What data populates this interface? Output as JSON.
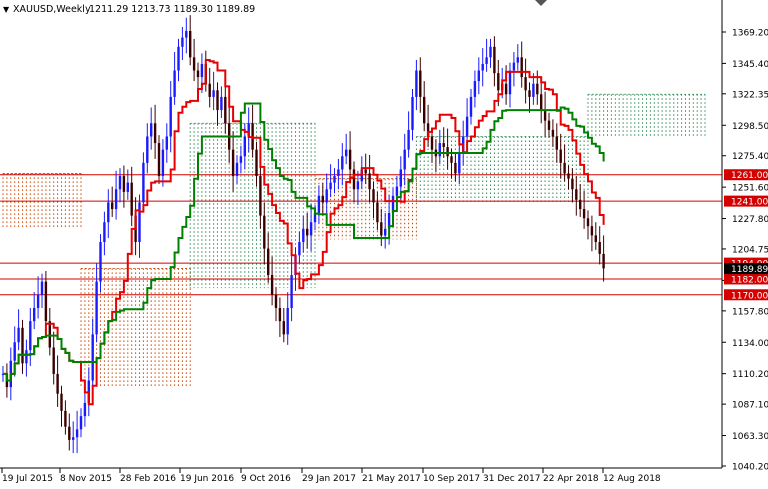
{
  "header": {
    "menu_glyph": "▼",
    "symbol": "XAUUSD,Weekly",
    "ohlc": "1211.29 1213.73 1189.30 1189.89"
  },
  "colors": {
    "bull_candle": "#1a1aff",
    "bear_candle": "#3a0000",
    "tenkan": "#e60000",
    "kijun": "#008000",
    "cloud_up": "#2e8b57",
    "cloud_down": "#cc4400",
    "hline": "#d40000",
    "label_bg": "#d40000",
    "current_bg": "#000000"
  },
  "chart_data": {
    "type": "candlestick",
    "y_ticks": [
      "1369.20",
      "1345.40",
      "1322.35",
      "1298.50",
      "1275.40",
      "1251.60",
      "1227.80",
      "1204.75",
      "1180.90",
      "1157.80",
      "1134.00",
      "1110.20",
      "1087.10",
      "1063.30",
      "1040.20"
    ],
    "x_ticks": [
      "19 Jul 2015",
      "8 Nov 2015",
      "28 Feb 2016",
      "19 Jun 2016",
      "9 Oct 2016",
      "29 Jan 2017",
      "21 May 2017",
      "10 Sep 2017",
      "31 Dec 2017",
      "22 Apr 2018",
      "12 Aug 2018"
    ],
    "horizontal_levels": [
      {
        "price": 1261.0,
        "label": "1261.00"
      },
      {
        "price": 1241.0,
        "label": "1241.00"
      },
      {
        "price": 1194.0,
        "label": "1194.00"
      },
      {
        "price": 1182.0,
        "label": "1182.00"
      },
      {
        "price": 1170.0,
        "label": "1170.00"
      }
    ],
    "current_price": {
      "price": 1189.89,
      "label": "1189.89"
    },
    "y_range": [
      1040.2,
      1380
    ],
    "start_week": "2015-07-05",
    "candles_close": [
      1110,
      1100,
      1120,
      1134,
      1145,
      1118,
      1128,
      1150,
      1160,
      1170,
      1180,
      1150,
      1130,
      1110,
      1095,
      1082,
      1070,
      1060,
      1062,
      1068,
      1078,
      1088,
      1105,
      1140,
      1180,
      1210,
      1225,
      1240,
      1235,
      1250,
      1260,
      1248,
      1255,
      1230,
      1210,
      1240,
      1270,
      1290,
      1300,
      1285,
      1260,
      1280,
      1290,
      1320,
      1340,
      1358,
      1365,
      1370,
      1350,
      1340,
      1335,
      1345,
      1330,
      1320,
      1325,
      1310,
      1320,
      1300,
      1280,
      1260,
      1270,
      1275,
      1290,
      1300,
      1280,
      1260,
      1230,
      1205,
      1185,
      1170,
      1160,
      1150,
      1140,
      1160,
      1185,
      1200,
      1210,
      1220,
      1215,
      1225,
      1232,
      1245,
      1240,
      1250,
      1255,
      1260,
      1265,
      1275,
      1280,
      1265,
      1250,
      1256,
      1265,
      1262,
      1250,
      1240,
      1225,
      1215,
      1220,
      1232,
      1245,
      1252,
      1265,
      1280,
      1295,
      1320,
      1340,
      1320,
      1300,
      1290,
      1280,
      1275,
      1285,
      1282,
      1275,
      1270,
      1262,
      1278,
      1290,
      1305,
      1320,
      1332,
      1340,
      1345,
      1350,
      1358,
      1338,
      1325,
      1330,
      1322,
      1340,
      1346,
      1350,
      1335,
      1325,
      1320,
      1330,
      1322,
      1310,
      1302,
      1295,
      1290,
      1280,
      1270,
      1262,
      1258,
      1250,
      1242,
      1235,
      1228,
      1222,
      1215,
      1210,
      1201,
      1190
    ],
    "cloud_spans": [
      {
        "from_week": 0,
        "to_week": 20,
        "top": 1262,
        "bottom": 1220,
        "kind": "down"
      },
      {
        "from_week": 20,
        "to_week": 48,
        "top": 1190,
        "bottom": 1100,
        "kind": "down"
      },
      {
        "from_week": 48,
        "to_week": 80,
        "top": 1300,
        "bottom": 1175,
        "kind": "up"
      },
      {
        "from_week": 80,
        "to_week": 106,
        "top": 1258,
        "bottom": 1212,
        "kind": "down"
      },
      {
        "from_week": 106,
        "to_week": 150,
        "top": 1290,
        "bottom": 1240,
        "kind": "up"
      },
      {
        "from_week": 150,
        "to_week": 180,
        "top": 1322,
        "bottom": 1290,
        "kind": "up"
      }
    ]
  }
}
